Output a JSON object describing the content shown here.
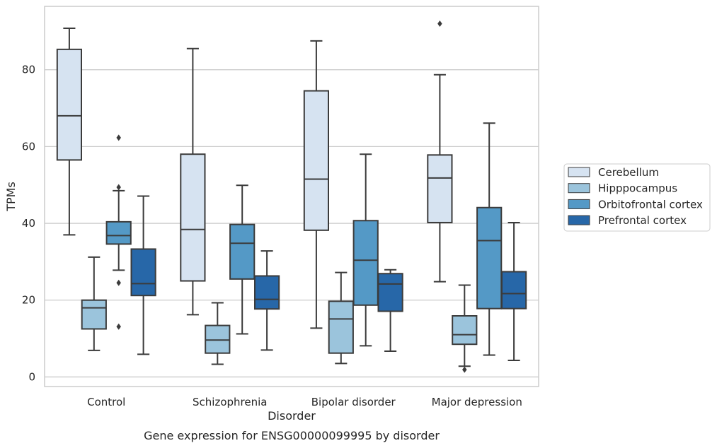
{
  "chart_data": {
    "type": "box",
    "title": "",
    "caption": "Gene expression for ENSG00000099995 by disorder",
    "xlabel": "Disorder",
    "ylabel": "TPMs",
    "ylim": [
      -2.5,
      96.5
    ],
    "yticks": [
      0,
      20,
      40,
      60,
      80
    ],
    "grid": "horizontal",
    "legend_position": "right",
    "categories": [
      "Control",
      "Schizophrenia",
      "Bipolar disorder",
      "Major depression"
    ],
    "series": [
      {
        "name": "Cerebellum",
        "color": "#d6e3f1",
        "boxes": [
          {
            "whisker_low": 37.0,
            "q1": 56.5,
            "median": 68.0,
            "q3": 85.3,
            "whisker_high": 90.8,
            "outliers": []
          },
          {
            "whisker_low": 16.2,
            "q1": 25.0,
            "median": 38.4,
            "q3": 58.0,
            "whisker_high": 85.5,
            "outliers": []
          },
          {
            "whisker_low": 12.7,
            "q1": 38.2,
            "median": 51.5,
            "q3": 74.5,
            "whisker_high": 87.5,
            "outliers": []
          },
          {
            "whisker_low": 24.8,
            "q1": 40.2,
            "median": 51.8,
            "q3": 57.8,
            "whisker_high": 78.7,
            "outliers": [
              92.0
            ]
          }
        ]
      },
      {
        "name": "Hipppocampus",
        "color": "#9bc4dc",
        "boxes": [
          {
            "whisker_low": 6.9,
            "q1": 12.5,
            "median": 18.0,
            "q3": 20.0,
            "whisker_high": 31.2,
            "outliers": []
          },
          {
            "whisker_low": 3.3,
            "q1": 6.2,
            "median": 9.6,
            "q3": 13.4,
            "whisker_high": 19.3,
            "outliers": []
          },
          {
            "whisker_low": 3.5,
            "q1": 6.2,
            "median": 15.1,
            "q3": 19.7,
            "whisker_high": 27.2,
            "outliers": []
          },
          {
            "whisker_low": 2.8,
            "q1": 8.5,
            "median": 11.0,
            "q3": 15.9,
            "whisker_high": 23.9,
            "outliers": [
              1.9
            ]
          }
        ]
      },
      {
        "name": "Orbitofrontal cortex",
        "color": "#5499c6",
        "boxes": [
          {
            "whisker_low": 27.8,
            "q1": 34.6,
            "median": 36.8,
            "q3": 40.4,
            "whisker_high": 48.5,
            "outliers": [
              62.3,
              49.4,
              24.5,
              13.1
            ]
          },
          {
            "whisker_low": 11.2,
            "q1": 25.5,
            "median": 34.8,
            "q3": 39.7,
            "whisker_high": 49.9,
            "outliers": []
          },
          {
            "whisker_low": 8.1,
            "q1": 18.7,
            "median": 30.4,
            "q3": 40.7,
            "whisker_high": 58.0,
            "outliers": []
          },
          {
            "whisker_low": 5.7,
            "q1": 17.8,
            "median": 35.5,
            "q3": 44.1,
            "whisker_high": 66.1,
            "outliers": []
          }
        ]
      },
      {
        "name": "Prefrontal cortex",
        "color": "#2767a8",
        "boxes": [
          {
            "whisker_low": 5.9,
            "q1": 21.2,
            "median": 24.3,
            "q3": 33.3,
            "whisker_high": 47.1,
            "outliers": []
          },
          {
            "whisker_low": 7.0,
            "q1": 17.7,
            "median": 20.2,
            "q3": 26.3,
            "whisker_high": 32.8,
            "outliers": []
          },
          {
            "whisker_low": 6.7,
            "q1": 17.1,
            "median": 24.2,
            "q3": 26.9,
            "whisker_high": 27.9,
            "outliers": []
          },
          {
            "whisker_low": 4.3,
            "q1": 17.8,
            "median": 21.7,
            "q3": 27.4,
            "whisker_high": 40.2,
            "outliers": []
          }
        ]
      }
    ]
  }
}
